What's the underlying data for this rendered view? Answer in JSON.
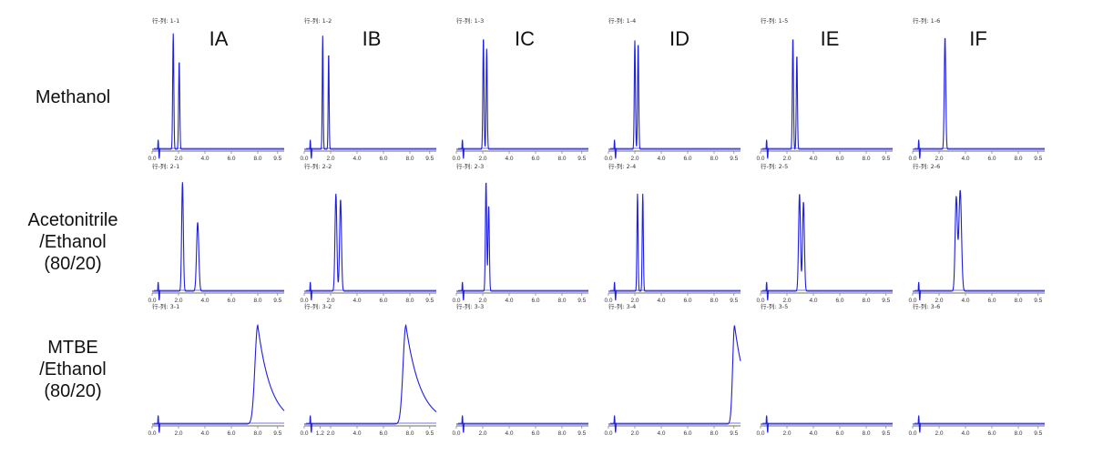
{
  "columns": [
    "IA",
    "IB",
    "IC",
    "ID",
    "IE",
    "IF"
  ],
  "rows": [
    {
      "label": "Methanol"
    },
    {
      "label": "Acetonitrile\n/Ethanol\n(80/20)"
    },
    {
      "label": "MTBE\n/Ethanol\n(80/20)"
    }
  ],
  "colors": {
    "trace": "#1f1fe0",
    "baseline": "#4a4ad8",
    "axis": "#8a8a8a",
    "text": "#111111"
  },
  "chart_data": [
    {
      "type": "line",
      "panel_id": "行-列: 1-1",
      "x_ticks": [
        "0.0",
        "2.0",
        "4.0",
        "6.0",
        "8.0",
        "9.5"
      ],
      "xlim": [
        0,
        10
      ],
      "ylim": [
        0,
        1
      ],
      "peaks": [
        {
          "x": 1.6,
          "h": 0.98,
          "w": 0.06
        },
        {
          "x": 2.05,
          "h": 0.75,
          "w": 0.06
        }
      ]
    },
    {
      "type": "line",
      "panel_id": "行-列: 1-2",
      "x_ticks": [
        "0.0",
        "2.0",
        "4.0",
        "6.0",
        "8.0",
        "9.5"
      ],
      "xlim": [
        0,
        10
      ],
      "ylim": [
        0,
        1
      ],
      "peaks": [
        {
          "x": 1.4,
          "h": 0.96,
          "w": 0.05
        },
        {
          "x": 1.85,
          "h": 0.82,
          "w": 0.05
        }
      ]
    },
    {
      "type": "line",
      "panel_id": "行-列: 1-3",
      "x_ticks": [
        "0.0",
        "2.0",
        "4.0",
        "6.0",
        "8.0",
        "9.5"
      ],
      "xlim": [
        0,
        10
      ],
      "ylim": [
        0,
        1
      ],
      "peaks": [
        {
          "x": 2.05,
          "h": 0.95,
          "w": 0.06
        },
        {
          "x": 2.3,
          "h": 0.85,
          "w": 0.06
        }
      ]
    },
    {
      "type": "line",
      "panel_id": "行-列: 1-4",
      "x_ticks": [
        "0.0",
        "2.0",
        "4.0",
        "6.0",
        "8.0",
        "9.5"
      ],
      "xlim": [
        0,
        10
      ],
      "ylim": [
        0,
        1
      ],
      "peaks": [
        {
          "x": 2.0,
          "h": 0.92,
          "w": 0.06
        },
        {
          "x": 2.25,
          "h": 0.9,
          "w": 0.06
        }
      ]
    },
    {
      "type": "line",
      "panel_id": "行-列: 1-5",
      "x_ticks": [
        "0.0",
        "2.0",
        "4.0",
        "6.0",
        "8.0",
        "9.5"
      ],
      "xlim": [
        0,
        10
      ],
      "ylim": [
        0,
        1
      ],
      "peaks": [
        {
          "x": 2.45,
          "h": 0.95,
          "w": 0.06
        },
        {
          "x": 2.75,
          "h": 0.8,
          "w": 0.06
        }
      ]
    },
    {
      "type": "line",
      "panel_id": "行-列: 1-6",
      "x_ticks": [
        "0.0",
        "2.0",
        "4.0",
        "6.0",
        "8.0",
        "9.5"
      ],
      "xlim": [
        0,
        10
      ],
      "ylim": [
        0,
        1
      ],
      "peaks": [
        {
          "x": 2.45,
          "h": 0.95,
          "w": 0.08
        }
      ]
    },
    {
      "type": "line",
      "panel_id": "行-列: 2-1",
      "x_ticks": [
        "0.0",
        "2.0",
        "4.0",
        "6.0",
        "8.0",
        "9.5"
      ],
      "xlim": [
        0,
        10
      ],
      "ylim": [
        0,
        1
      ],
      "peaks": [
        {
          "x": 2.3,
          "h": 0.95,
          "w": 0.09
        },
        {
          "x": 3.45,
          "h": 0.6,
          "w": 0.12
        }
      ]
    },
    {
      "type": "line",
      "panel_id": "行-列: 2-2",
      "x_ticks": [
        "0.0",
        "2.0",
        "4.0",
        "6.0",
        "8.0",
        "9.5"
      ],
      "xlim": [
        0,
        10
      ],
      "ylim": [
        0,
        1
      ],
      "peaks": [
        {
          "x": 2.4,
          "h": 0.85,
          "w": 0.1
        },
        {
          "x": 2.75,
          "h": 0.8,
          "w": 0.1
        }
      ]
    },
    {
      "type": "line",
      "panel_id": "行-列: 2-3",
      "x_ticks": [
        "0.0",
        "2.0",
        "4.0",
        "6.0",
        "8.0",
        "9.5"
      ],
      "xlim": [
        0,
        10
      ],
      "ylim": [
        0,
        1
      ],
      "peaks": [
        {
          "x": 2.25,
          "h": 0.96,
          "w": 0.07
        },
        {
          "x": 2.45,
          "h": 0.75,
          "w": 0.07
        }
      ]
    },
    {
      "type": "line",
      "panel_id": "行-列: 2-4",
      "x_ticks": [
        "0.0",
        "2.0",
        "4.0",
        "6.0",
        "8.0",
        "9.5"
      ],
      "xlim": [
        0,
        10
      ],
      "ylim": [
        0,
        1
      ],
      "peaks": [
        {
          "x": 2.2,
          "h": 0.85,
          "w": 0.06
        },
        {
          "x": 2.6,
          "h": 0.85,
          "w": 0.06
        }
      ]
    },
    {
      "type": "line",
      "panel_id": "行-列: 2-5",
      "x_ticks": [
        "0.0",
        "2.0",
        "4.0",
        "6.0",
        "8.0",
        "9.5"
      ],
      "xlim": [
        0,
        10
      ],
      "ylim": [
        0,
        1
      ],
      "peaks": [
        {
          "x": 2.95,
          "h": 0.85,
          "w": 0.1
        },
        {
          "x": 3.25,
          "h": 0.78,
          "w": 0.1
        }
      ]
    },
    {
      "type": "line",
      "panel_id": "行-列: 2-6",
      "x_ticks": [
        "0.0",
        "2.0",
        "4.0",
        "6.0",
        "8.0",
        "9.5"
      ],
      "xlim": [
        0,
        10
      ],
      "ylim": [
        0,
        1
      ],
      "peaks": [
        {
          "x": 3.3,
          "h": 0.82,
          "w": 0.12
        },
        {
          "x": 3.6,
          "h": 0.88,
          "w": 0.14
        }
      ]
    },
    {
      "type": "line",
      "panel_id": "行-列: 3-1",
      "x_ticks": [
        "0.0",
        "2.0",
        "4.0",
        "6.0",
        "8.0",
        "9.5"
      ],
      "xlim": [
        0,
        10
      ],
      "ylim": [
        0,
        1
      ],
      "peaks": [
        {
          "x": 8.0,
          "h": 0.92,
          "w": 0.3,
          "tail": 1.0
        }
      ]
    },
    {
      "type": "line",
      "panel_id": "行-列: 3-2",
      "x_ticks": [
        "0.0",
        "1.2",
        "2.0",
        "4.0",
        "6.0",
        "8.0",
        "9.5"
      ],
      "xlim": [
        0,
        10
      ],
      "ylim": [
        0,
        1
      ],
      "peaks": [
        {
          "x": 7.7,
          "h": 0.92,
          "w": 0.3,
          "tail": 1.1
        }
      ]
    },
    {
      "type": "line",
      "panel_id": "行-列: 3-3",
      "x_ticks": [
        "0.0",
        "2.0",
        "4.0",
        "6.0",
        "8.0",
        "9.5"
      ],
      "xlim": [
        0,
        10
      ],
      "ylim": [
        0,
        1
      ],
      "peaks": []
    },
    {
      "type": "line",
      "panel_id": "行-列: 3-4",
      "x_ticks": [
        "0.0",
        "2.0",
        "4.0",
        "6.0",
        "8.0",
        "9.5"
      ],
      "xlim": [
        0,
        10
      ],
      "ylim": [
        0,
        1
      ],
      "peaks": [
        {
          "x": 9.55,
          "h": 0.92,
          "w": 0.2,
          "tail": 1.0
        }
      ]
    },
    {
      "type": "line",
      "panel_id": "行-列: 3-5",
      "x_ticks": [
        "0.0",
        "2.0",
        "4.0",
        "6.0",
        "8.0",
        "9.5"
      ],
      "xlim": [
        0,
        10
      ],
      "ylim": [
        0,
        1
      ],
      "peaks": []
    },
    {
      "type": "line",
      "panel_id": "行-列: 3-6",
      "x_ticks": [
        "0.0",
        "2.0",
        "4.0",
        "6.0",
        "8.0",
        "9.5"
      ],
      "xlim": [
        0,
        10
      ],
      "ylim": [
        0,
        1
      ],
      "peaks": []
    }
  ]
}
